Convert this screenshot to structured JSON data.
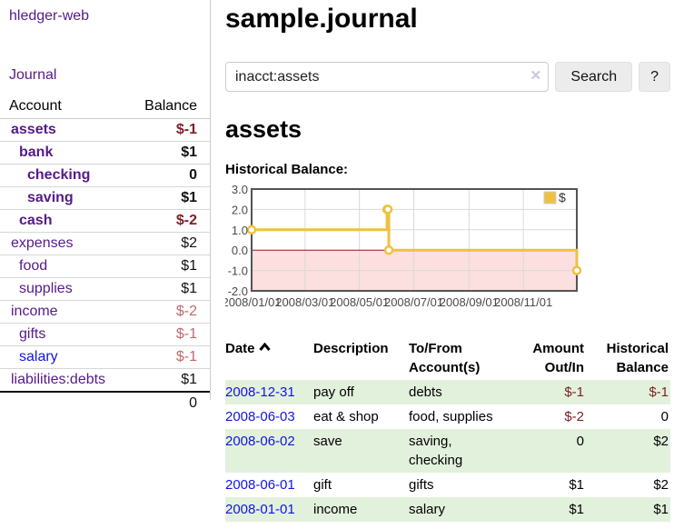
{
  "sidebar": {
    "app_title": "hledger-web",
    "journal_link": "Journal",
    "accounts": {
      "headers": {
        "account": "Account",
        "balance": "Balance"
      },
      "rows": [
        {
          "account": "assets",
          "balance": "$-1",
          "level": 1,
          "bold": true,
          "link_color": "purple",
          "balance_class": "negd"
        },
        {
          "account": "bank",
          "balance": "$1",
          "level": 2,
          "bold": true,
          "link_color": "purple",
          "balance_class": "pos"
        },
        {
          "account": "checking",
          "balance": "0",
          "level": 3,
          "bold": true,
          "link_color": "purple",
          "balance_class": "pos"
        },
        {
          "account": "saving",
          "balance": "$1",
          "level": 3,
          "bold": true,
          "link_color": "purple",
          "balance_class": "pos"
        },
        {
          "account": "cash",
          "balance": "$-2",
          "level": 2,
          "bold": true,
          "link_color": "purple",
          "balance_class": "negd"
        },
        {
          "account": "expenses",
          "balance": "$2",
          "level": 1,
          "bold": false,
          "link_color": "purple",
          "balance_class": "pos"
        },
        {
          "account": "food",
          "balance": "$1",
          "level": 2,
          "bold": false,
          "link_color": "purple",
          "balance_class": "pos"
        },
        {
          "account": "supplies",
          "balance": "$1",
          "level": 2,
          "bold": false,
          "link_color": "purple",
          "balance_class": "pos"
        },
        {
          "account": "income",
          "balance": "$-2",
          "level": 1,
          "bold": false,
          "link_color": "purple",
          "balance_class": "negl"
        },
        {
          "account": "gifts",
          "balance": "$-1",
          "level": 2,
          "bold": false,
          "link_color": "purple",
          "balance_class": "negl"
        },
        {
          "account": "salary",
          "balance": "$-1",
          "level": 2,
          "bold": false,
          "link_color": "blue",
          "balance_class": "negl"
        },
        {
          "account": "liabilities:debts",
          "balance": "$1",
          "level": 1,
          "bold": false,
          "link_color": "purple",
          "balance_class": "pos"
        }
      ],
      "total": "0"
    }
  },
  "main": {
    "title": "sample.journal",
    "search": {
      "value": "inacct:assets",
      "clear_icon": "×",
      "search_button": "Search",
      "help_button": "?"
    },
    "account_heading": "assets",
    "chart_label": "Historical Balance:",
    "register": {
      "headers": {
        "date": "Date",
        "sort": "ascending",
        "description": "Description",
        "accounts": "To/From Account(s)",
        "amount": "Amount Out/In",
        "balance": "Historical Balance"
      },
      "rows": [
        {
          "date": "2008-12-31",
          "description": "pay off",
          "accounts": "debts",
          "amount": "$-1",
          "amount_neg": true,
          "balance": "$-1",
          "balance_neg": true,
          "shaded": true
        },
        {
          "date": "2008-06-03",
          "description": "eat & shop",
          "accounts": "food, supplies",
          "amount": "$-2",
          "amount_neg": true,
          "balance": "0",
          "balance_neg": false,
          "shaded": false
        },
        {
          "date": "2008-06-02",
          "description": "save",
          "accounts": "saving, checking",
          "amount": "0",
          "amount_neg": false,
          "balance": "$2",
          "balance_neg": false,
          "shaded": true
        },
        {
          "date": "2008-06-01",
          "description": "gift",
          "accounts": "gifts",
          "amount": "$1",
          "amount_neg": false,
          "balance": "$2",
          "balance_neg": false,
          "shaded": false
        },
        {
          "date": "2008-01-01",
          "description": "income",
          "accounts": "salary",
          "amount": "$1",
          "amount_neg": false,
          "balance": "$1",
          "balance_neg": false,
          "shaded": true
        }
      ]
    }
  },
  "chart_data": {
    "type": "line",
    "step": true,
    "title": "Historical Balance:",
    "series": [
      {
        "name": "$",
        "points": [
          [
            "2008-01-01",
            1
          ],
          [
            "2008-06-01",
            2
          ],
          [
            "2008-06-02",
            2
          ],
          [
            "2008-06-03",
            0
          ],
          [
            "2008-12-31",
            -1
          ]
        ]
      }
    ],
    "x_range": [
      "2008-01-01",
      "2008-12-31"
    ],
    "ylim": [
      -2,
      3
    ],
    "yticks": [
      {
        "value": 3,
        "label": "3.0"
      },
      {
        "value": 2,
        "label": "2.0"
      },
      {
        "value": 1,
        "label": "1.0"
      },
      {
        "value": 0,
        "label": "0.0"
      },
      {
        "value": -1,
        "label": "-1.0"
      },
      {
        "value": -2,
        "label": "-2.0"
      }
    ],
    "xticks": [
      {
        "date": "2008-01-01",
        "label": "2008/01/01"
      },
      {
        "date": "2008-03-01",
        "label": "2008/03/01"
      },
      {
        "date": "2008-05-01",
        "label": "2008/05/01"
      },
      {
        "date": "2008-07-01",
        "label": "2008/07/01"
      },
      {
        "date": "2008-09-01",
        "label": "2008/09/01"
      },
      {
        "date": "2008-11-01",
        "label": "2008/11/01"
      }
    ],
    "legend": {
      "label": "$",
      "position": "top-right"
    },
    "colors": {
      "line": "#edc240",
      "point_fill": "#ffffff",
      "negative_region": "#fcdfdf",
      "zero_line": "#8b1e1e",
      "grid": "#d9d9d9",
      "border": "#545454",
      "tick_text": "#4a4a4a"
    }
  }
}
